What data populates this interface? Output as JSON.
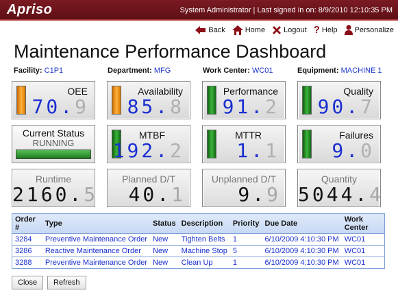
{
  "app": {
    "logo": "Apriso",
    "signin_text": "System Administrator | Last signed in on: 8/9/2010 12:10:35 PM"
  },
  "nav": [
    {
      "label": "Back",
      "icon": "back-arrow-icon"
    },
    {
      "label": "Home",
      "icon": "home-icon"
    },
    {
      "label": "Logout",
      "icon": "logout-x-icon"
    },
    {
      "label": "Help",
      "icon": "help-question-icon"
    },
    {
      "label": "Personalize",
      "icon": "person-icon"
    }
  ],
  "page_title": "Maintenance Performance Dashboard",
  "filters": {
    "facility": {
      "label": "Facility:",
      "value": "C1P1"
    },
    "department": {
      "label": "Department:",
      "value": "MFG"
    },
    "work_center": {
      "label": "Work Center:",
      "value": "WC01"
    },
    "equipment": {
      "label": "Equipment:",
      "value": "MACHINE 1"
    }
  },
  "kpis": {
    "oee": {
      "label": "OEE",
      "value_main": "70.",
      "value_dim": "9",
      "indicator": "orange"
    },
    "availability": {
      "label": "Availability",
      "value_main": "85.",
      "value_dim": "8",
      "indicator": "orange"
    },
    "performance": {
      "label": "Performance",
      "value_main": "91.",
      "value_dim": "2",
      "indicator": "green"
    },
    "quality": {
      "label": "Quality",
      "value_main": "90.",
      "value_dim": "7",
      "indicator": "green"
    },
    "mtbf": {
      "label": "MTBF",
      "value_main": "192.",
      "value_dim": "2",
      "indicator": "green"
    },
    "mttr": {
      "label": "MTTR",
      "value_main": "1.",
      "value_dim": "1",
      "indicator": "green"
    },
    "failures": {
      "label": "Failures",
      "value_main": "9.",
      "value_dim": "0",
      "indicator": "green"
    }
  },
  "status": {
    "label": "Current Status",
    "value": "RUNNING",
    "color": "#2e9a2e"
  },
  "totals": {
    "runtime": {
      "label": "Runtime",
      "value_main": "2160.",
      "value_dim": "5"
    },
    "planned_dt": {
      "label": "Planned D/T",
      "value_main": "40.",
      "value_dim": "1"
    },
    "unplanned_dt": {
      "label": "Unplanned D/T",
      "value_main": "9.",
      "value_dim": "9"
    },
    "quantity": {
      "label": "Quantity",
      "value_main": "5044.",
      "value_dim": "4"
    }
  },
  "orders": {
    "columns": [
      "Order #",
      "Type",
      "Status",
      "Description",
      "Priority",
      "Due Date",
      "Work Center"
    ],
    "rows": [
      [
        "3284",
        "Preventive Maintenance Order",
        "New",
        "Tighten Belts",
        "1",
        "6/10/2009 4:10:30 PM",
        "WC01"
      ],
      [
        "3286",
        "Reactive Maintenance Order",
        "New",
        "Machine Stop",
        "5",
        "6/10/2009 4:10:30 PM",
        "WC01"
      ],
      [
        "3288",
        "Preventive Maintenance Order",
        "New",
        "Clean Up",
        "1",
        "6/10/2009 4:10:30 PM",
        "WC01"
      ]
    ]
  },
  "buttons": {
    "close": "Close",
    "refresh": "Refresh"
  },
  "colors": {
    "brand": "#6b1219",
    "link_blue": "#1a2fd0",
    "warn_orange": "#f59a1a",
    "ok_green": "#2e9a2e"
  }
}
